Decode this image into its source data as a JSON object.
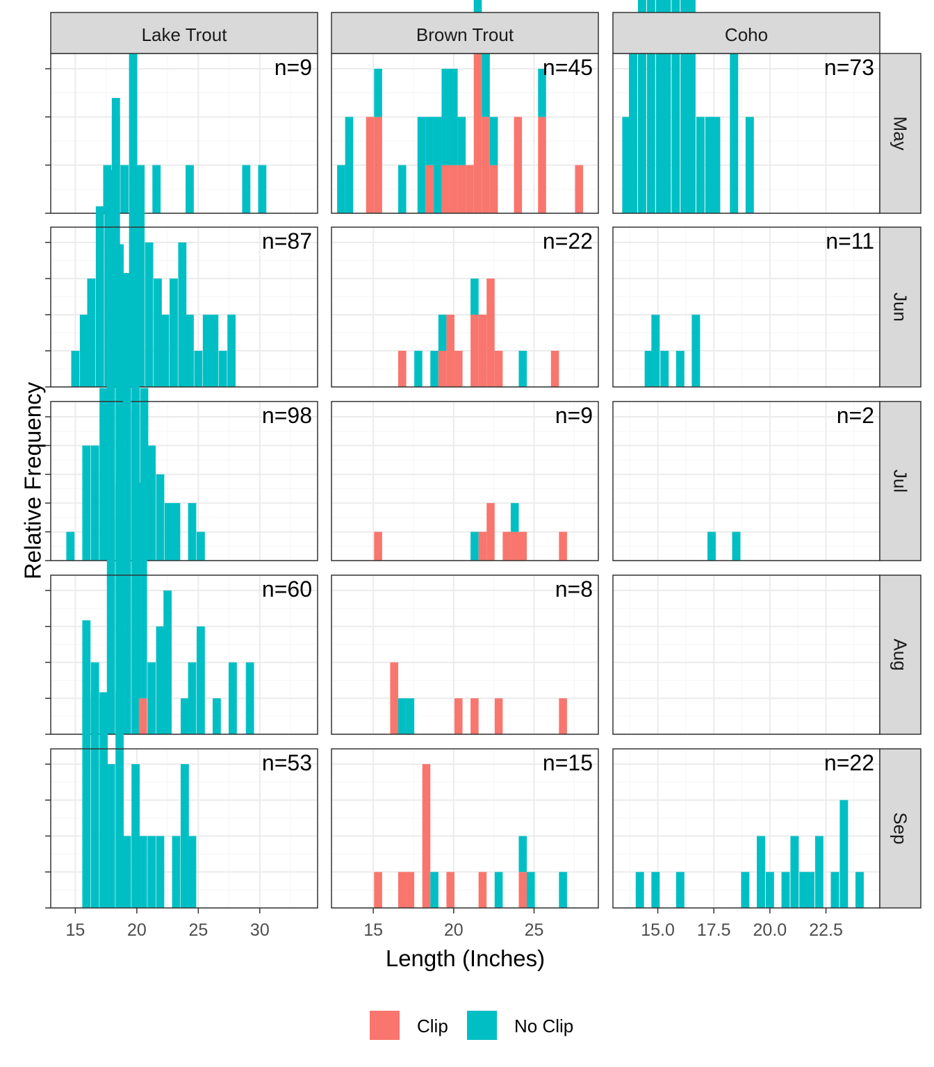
{
  "chart_data": {
    "type": "bar",
    "subtype": "faceted histogram (stacked)",
    "xlabel": "Length (Inches)",
    "ylabel": "Relative Frequency",
    "columns": [
      "Lake Trout",
      "Brown Trout",
      "Coho"
    ],
    "rows": [
      "May",
      "Jun",
      "Jul",
      "Aug",
      "Sep"
    ],
    "legend": {
      "position": "bottom",
      "entries": [
        {
          "name": "Clip",
          "color": "#F8766D"
        },
        {
          "name": "No Clip",
          "color": "#00BFC4"
        }
      ]
    },
    "x_axes": [
      {
        "column": "Lake Trout",
        "xlim": [
          13.0,
          34.7
        ],
        "ticks": [
          15,
          20,
          25,
          30
        ],
        "tick_labels": [
          "15",
          "20",
          "25",
          "30"
        ],
        "binwidth": 0.667
      },
      {
        "column": "Brown Trout",
        "xlim": [
          12.4,
          29.0
        ],
        "ticks": [
          15,
          20,
          25
        ],
        "tick_labels": [
          "15",
          "20",
          "25"
        ],
        "binwidth": 0.5
      },
      {
        "column": "Coho",
        "xlim": [
          13.0,
          24.9
        ],
        "ticks": [
          15.0,
          17.5,
          20.0,
          22.5
        ],
        "tick_labels": [
          "15.0",
          "17.5",
          "20.0",
          "22.5"
        ],
        "binwidth": 0.37
      }
    ],
    "colors": {
      "clip": "#F8766D",
      "noclip": "#00BFC4",
      "strip_bg": "#D9D9D9",
      "panel_border": "#333333",
      "grid_major": "#EBEBEB",
      "grid_minor": "#F5F5F5",
      "tick": "#333333"
    },
    "panels": [
      {
        "column": "Lake Trout",
        "row": "May",
        "n_label": "n=9",
        "ylim": [
          0,
          3.0
        ],
        "y_ticks": [
          1,
          2,
          3
        ],
        "bins": [
          {
            "x": 17.6,
            "noclip": 1
          },
          {
            "x": 18.3,
            "noclip": 2
          },
          {
            "x": 19.0,
            "noclip": 1
          },
          {
            "x": 20.3,
            "noclip": 1
          },
          {
            "x": 21.6,
            "noclip": 1
          },
          {
            "x": 24.3,
            "noclip": 1
          },
          {
            "x": 28.9,
            "noclip": 1
          },
          {
            "x": 30.2,
            "noclip": 1
          }
        ]
      },
      {
        "column": "Brown Trout",
        "row": "May",
        "n_label": "n=45",
        "ylim": [
          0,
          3.0
        ],
        "y_ticks": [
          1,
          2,
          3
        ],
        "bins": [
          {
            "x": 13.0,
            "noclip": 1
          },
          {
            "x": 13.5,
            "noclip": 2
          },
          {
            "x": 14.8,
            "clip": 2
          },
          {
            "x": 15.3,
            "clip": 2,
            "noclip": 1
          },
          {
            "x": 16.8,
            "noclip": 1
          },
          {
            "x": 18.0,
            "noclip": 2
          },
          {
            "x": 18.5,
            "clip": 1,
            "noclip": 1
          },
          {
            "x": 19.0,
            "noclip": 2
          },
          {
            "x": 19.5,
            "clip": 1,
            "noclip": 2
          },
          {
            "x": 20.0,
            "clip": 1,
            "noclip": 2
          },
          {
            "x": 20.5,
            "clip": 1,
            "noclip": 1
          },
          {
            "x": 21.0,
            "clip": 1
          },
          {
            "x": 21.5,
            "clip": 4,
            "noclip": 1
          },
          {
            "x": 22.0,
            "clip": 2,
            "noclip": 2
          },
          {
            "x": 22.5,
            "clip": 1,
            "noclip": 1
          },
          {
            "x": 24.0,
            "clip": 2
          },
          {
            "x": 25.5,
            "clip": 2,
            "noclip": 1
          },
          {
            "x": 27.8,
            "clip": 1
          }
        ]
      },
      {
        "column": "Coho",
        "row": "May",
        "n_label": "n=73",
        "ylim": [
          0,
          3.0
        ],
        "y_ticks": [
          1,
          2,
          3
        ],
        "bins": [
          {
            "x": 13.6,
            "noclip": 2
          },
          {
            "x": 13.9,
            "noclip": 4
          },
          {
            "x": 14.3,
            "noclip": 6
          },
          {
            "x": 14.7,
            "noclip": 16
          },
          {
            "x": 15.1,
            "noclip": 13
          },
          {
            "x": 15.4,
            "noclip": 26
          },
          {
            "x": 15.8,
            "noclip": 17
          },
          {
            "x": 16.2,
            "noclip": 13
          },
          {
            "x": 16.5,
            "noclip": 12
          },
          {
            "x": 16.9,
            "noclip": 2
          },
          {
            "x": 17.3,
            "noclip": 2
          },
          {
            "x": 17.6,
            "noclip": 2
          },
          {
            "x": 18.4,
            "noclip": 4
          },
          {
            "x": 19.1,
            "noclip": 2
          }
        ]
      },
      {
        "column": "Lake Trout",
        "row": "Jun",
        "n_label": "n=87",
        "ylim": [
          0,
          4.0
        ],
        "y_ticks": [
          1,
          2,
          3,
          4
        ],
        "bins": [
          {
            "x": 15.0,
            "noclip": 1
          },
          {
            "x": 15.7,
            "noclip": 2
          },
          {
            "x": 16.3,
            "noclip": 3
          },
          {
            "x": 17.0,
            "noclip": 5
          },
          {
            "x": 17.7,
            "noclip": 6
          },
          {
            "x": 18.3,
            "noclip": 8
          },
          {
            "x": 19.0,
            "noclip": 3
          },
          {
            "x": 19.7,
            "noclip": 10
          },
          {
            "x": 20.3,
            "noclip": 6
          },
          {
            "x": 21.0,
            "noclip": 4
          },
          {
            "x": 21.7,
            "noclip": 3
          },
          {
            "x": 22.3,
            "noclip": 2
          },
          {
            "x": 23.0,
            "noclip": 3
          },
          {
            "x": 23.7,
            "noclip": 4
          },
          {
            "x": 24.3,
            "noclip": 2
          },
          {
            "x": 25.0,
            "noclip": 1
          },
          {
            "x": 25.7,
            "noclip": 2
          },
          {
            "x": 26.3,
            "noclip": 2
          },
          {
            "x": 27.0,
            "noclip": 1
          },
          {
            "x": 27.7,
            "noclip": 2
          }
        ]
      },
      {
        "column": "Brown Trout",
        "row": "Jun",
        "n_label": "n=22",
        "ylim": [
          0,
          4.0
        ],
        "y_ticks": [
          1,
          2,
          3,
          4
        ],
        "bins": [
          {
            "x": 16.8,
            "clip": 1
          },
          {
            "x": 17.8,
            "noclip": 1
          },
          {
            "x": 18.8,
            "noclip": 1
          },
          {
            "x": 19.3,
            "clip": 1,
            "noclip": 1
          },
          {
            "x": 19.8,
            "clip": 2
          },
          {
            "x": 20.3,
            "clip": 1
          },
          {
            "x": 21.3,
            "clip": 2,
            "noclip": 1
          },
          {
            "x": 21.8,
            "clip": 2
          },
          {
            "x": 22.3,
            "clip": 3
          },
          {
            "x": 22.8,
            "clip": 1
          },
          {
            "x": 24.3,
            "noclip": 1
          },
          {
            "x": 26.3,
            "clip": 1
          }
        ]
      },
      {
        "column": "Coho",
        "row": "Jun",
        "n_label": "n=11",
        "ylim": [
          0,
          4.0
        ],
        "y_ticks": [
          1,
          2,
          3,
          4
        ],
        "bins": [
          {
            "x": 14.6,
            "noclip": 1
          },
          {
            "x": 14.9,
            "noclip": 2
          },
          {
            "x": 15.3,
            "noclip": 1
          },
          {
            "x": 16.0,
            "noclip": 1
          },
          {
            "x": 16.7,
            "noclip": 2
          }
        ]
      },
      {
        "column": "Lake Trout",
        "row": "Jul",
        "n_label": "n=98",
        "ylim": [
          0,
          5.0
        ],
        "y_ticks": [
          1,
          2,
          3,
          4,
          5
        ],
        "bins": [
          {
            "x": 14.6,
            "noclip": 1
          },
          {
            "x": 15.9,
            "noclip": 4
          },
          {
            "x": 16.6,
            "noclip": 4
          },
          {
            "x": 17.3,
            "noclip": 6
          },
          {
            "x": 17.9,
            "noclip": 9
          },
          {
            "x": 18.6,
            "noclip": 11
          },
          {
            "x": 19.2,
            "noclip": 10
          },
          {
            "x": 19.9,
            "noclip": 8
          },
          {
            "x": 20.6,
            "noclip": 6
          },
          {
            "x": 21.2,
            "noclip": 4
          },
          {
            "x": 21.9,
            "noclip": 3
          },
          {
            "x": 22.6,
            "noclip": 2
          },
          {
            "x": 23.2,
            "noclip": 2
          },
          {
            "x": 24.5,
            "noclip": 2
          },
          {
            "x": 25.2,
            "noclip": 1
          }
        ]
      },
      {
        "column": "Brown Trout",
        "row": "Jul",
        "n_label": "n=9",
        "ylim": [
          0,
          5.0
        ],
        "y_ticks": [
          1,
          2,
          3,
          4,
          5
        ],
        "bins": [
          {
            "x": 15.3,
            "clip": 1
          },
          {
            "x": 21.3,
            "noclip": 1
          },
          {
            "x": 21.8,
            "clip": 1
          },
          {
            "x": 22.3,
            "clip": 2
          },
          {
            "x": 23.3,
            "clip": 1
          },
          {
            "x": 23.8,
            "clip": 1,
            "noclip": 1
          },
          {
            "x": 24.3,
            "clip": 1
          },
          {
            "x": 26.8,
            "clip": 1
          }
        ]
      },
      {
        "column": "Coho",
        "row": "Jul",
        "n_label": "n=2",
        "ylim": [
          0,
          5.0
        ],
        "y_ticks": [
          1,
          2,
          3,
          4,
          5
        ],
        "bins": [
          {
            "x": 17.4,
            "noclip": 1
          },
          {
            "x": 18.5,
            "noclip": 1
          }
        ]
      },
      {
        "column": "Lake Trout",
        "row": "Aug",
        "n_label": "n=60",
        "ylim": [
          0,
          4.0
        ],
        "y_ticks": [
          1,
          2,
          3,
          4
        ],
        "bins": [
          {
            "x": 15.9,
            "noclip": 1
          },
          {
            "x": 16.6,
            "noclip": 2
          },
          {
            "x": 17.3,
            "noclip": 1
          },
          {
            "x": 17.9,
            "noclip": 6
          },
          {
            "x": 18.6,
            "noclip": 7
          },
          {
            "x": 19.2,
            "noclip": 10
          },
          {
            "x": 19.9,
            "noclip": 9
          },
          {
            "x": 20.5,
            "clip": 1,
            "noclip": 6
          },
          {
            "x": 21.2,
            "noclip": 2
          },
          {
            "x": 21.9,
            "noclip": 3
          },
          {
            "x": 22.5,
            "noclip": 4
          },
          {
            "x": 23.9,
            "noclip": 1
          },
          {
            "x": 24.5,
            "noclip": 2
          },
          {
            "x": 25.2,
            "noclip": 3
          },
          {
            "x": 26.5,
            "noclip": 1
          },
          {
            "x": 27.8,
            "noclip": 2
          },
          {
            "x": 29.2,
            "noclip": 2
          }
        ]
      },
      {
        "column": "Brown Trout",
        "row": "Aug",
        "n_label": "n=8",
        "ylim": [
          0,
          4.0
        ],
        "y_ticks": [
          1,
          2,
          3,
          4
        ],
        "bins": [
          {
            "x": 16.3,
            "clip": 2
          },
          {
            "x": 16.8,
            "noclip": 1
          },
          {
            "x": 17.3,
            "noclip": 1
          },
          {
            "x": 20.3,
            "clip": 1
          },
          {
            "x": 21.3,
            "clip": 1
          },
          {
            "x": 22.8,
            "clip": 1
          },
          {
            "x": 26.8,
            "clip": 1
          }
        ]
      },
      {
        "column": "Coho",
        "row": "Aug",
        "n_label": "",
        "ylim": [
          0,
          4.0
        ],
        "y_ticks": [
          1,
          2,
          3,
          4
        ],
        "bins": []
      },
      {
        "column": "Lake Trout",
        "row": "Sep",
        "n_label": "n=53",
        "ylim": [
          0,
          4.0
        ],
        "y_ticks": [
          1,
          2,
          3,
          4
        ],
        "bins": [
          {
            "x": 15.9,
            "noclip": 8
          },
          {
            "x": 16.6,
            "noclip": 6
          },
          {
            "x": 17.3,
            "noclip": 6
          },
          {
            "x": 17.9,
            "noclip": 4
          },
          {
            "x": 18.6,
            "noclip": 6
          },
          {
            "x": 19.2,
            "noclip": 2
          },
          {
            "x": 19.9,
            "noclip": 4
          },
          {
            "x": 20.5,
            "noclip": 2
          },
          {
            "x": 21.2,
            "noclip": 2
          },
          {
            "x": 21.9,
            "noclip": 2
          },
          {
            "x": 23.2,
            "noclip": 2
          },
          {
            "x": 23.9,
            "noclip": 4
          },
          {
            "x": 24.5,
            "noclip": 2
          }
        ]
      },
      {
        "column": "Brown Trout",
        "row": "Sep",
        "n_label": "n=15",
        "ylim": [
          0,
          4.0
        ],
        "y_ticks": [
          1,
          2,
          3,
          4
        ],
        "bins": [
          {
            "x": 15.3,
            "clip": 1
          },
          {
            "x": 16.8,
            "clip": 1
          },
          {
            "x": 17.3,
            "clip": 1
          },
          {
            "x": 18.3,
            "clip": 4
          },
          {
            "x": 18.8,
            "noclip": 1
          },
          {
            "x": 19.8,
            "clip": 1
          },
          {
            "x": 21.8,
            "clip": 1
          },
          {
            "x": 22.8,
            "noclip": 1
          },
          {
            "x": 24.3,
            "clip": 1,
            "noclip": 1
          },
          {
            "x": 24.8,
            "noclip": 1
          },
          {
            "x": 26.8,
            "noclip": 1
          }
        ]
      },
      {
        "column": "Coho",
        "row": "Sep",
        "n_label": "n=22",
        "ylim": [
          0,
          4.0
        ],
        "y_ticks": [
          1,
          2,
          3,
          4
        ],
        "bins": [
          {
            "x": 14.2,
            "noclip": 1
          },
          {
            "x": 14.9,
            "noclip": 1
          },
          {
            "x": 16.0,
            "noclip": 1
          },
          {
            "x": 18.9,
            "noclip": 1
          },
          {
            "x": 19.6,
            "noclip": 2
          },
          {
            "x": 20.0,
            "noclip": 1
          },
          {
            "x": 20.7,
            "noclip": 1
          },
          {
            "x": 21.1,
            "noclip": 2
          },
          {
            "x": 21.5,
            "noclip": 1
          },
          {
            "x": 21.8,
            "noclip": 1
          },
          {
            "x": 22.2,
            "noclip": 2
          },
          {
            "x": 22.9,
            "noclip": 1
          },
          {
            "x": 23.3,
            "noclip": 3
          },
          {
            "x": 24.0,
            "noclip": 1
          }
        ]
      }
    ]
  }
}
